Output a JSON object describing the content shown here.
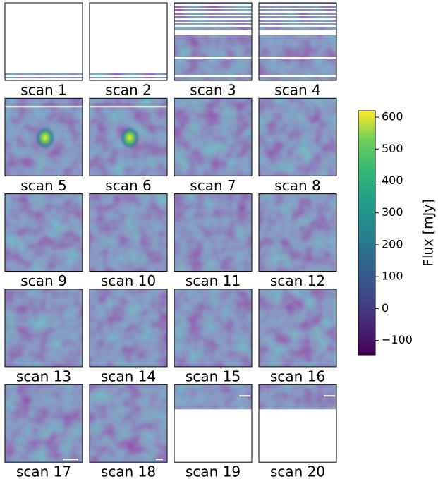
{
  "chart_data": {
    "type": "image_grid",
    "panels": [
      {
        "title": "scan 1"
      },
      {
        "title": "scan 2"
      },
      {
        "title": "scan 3"
      },
      {
        "title": "scan 4"
      },
      {
        "title": "scan 5"
      },
      {
        "title": "scan 6"
      },
      {
        "title": "scan 7"
      },
      {
        "title": "scan 8"
      },
      {
        "title": "scan 9"
      },
      {
        "title": "scan 10"
      },
      {
        "title": "scan 11"
      },
      {
        "title": "scan 12"
      },
      {
        "title": "scan 13"
      },
      {
        "title": "scan 14"
      },
      {
        "title": "scan 15"
      },
      {
        "title": "scan 16"
      },
      {
        "title": "scan 17"
      },
      {
        "title": "scan 18"
      },
      {
        "title": "scan 19"
      },
      {
        "title": "scan 20"
      }
    ],
    "colorbar": {
      "label": "Flux [mJy]",
      "colormap": "viridis",
      "lim": [
        -145,
        620
      ],
      "ticks": [
        {
          "value": -100,
          "label": "−100"
        },
        0,
        100,
        200,
        300,
        400,
        500,
        600
      ]
    }
  }
}
